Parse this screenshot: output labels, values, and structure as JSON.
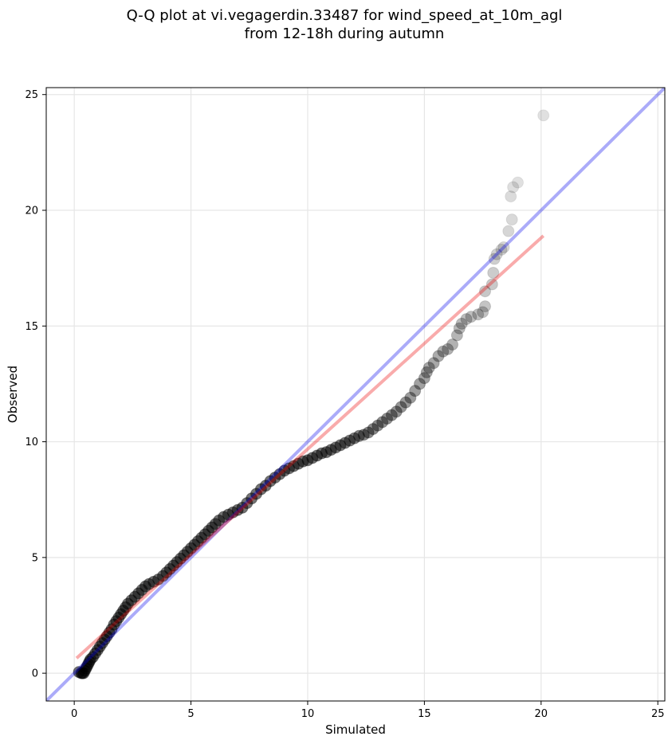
{
  "chart_data": {
    "type": "scatter",
    "title": [
      "Q-Q plot at vi.vegagerdin.33487 for wind_speed_at_10m_agl",
      "from 12-18h during autumn"
    ],
    "xlabel": "Simulated",
    "ylabel": "Observed",
    "xlim": [
      -1.2,
      25.3
    ],
    "ylim": [
      -1.2,
      25.3
    ],
    "xticks": [
      0,
      5,
      10,
      15,
      20,
      25
    ],
    "yticks": [
      0,
      5,
      10,
      15,
      20,
      25
    ],
    "grid": true,
    "point_color": "#000000",
    "reference_line": {
      "color": "#0000ee",
      "points": [
        [
          -1.2,
          -1.2
        ],
        [
          25.3,
          25.3
        ]
      ]
    },
    "fit_line": {
      "color": "#ee0000",
      "points": [
        [
          0.1,
          0.65
        ],
        [
          20.1,
          18.9
        ]
      ]
    },
    "points": [
      [
        0.2,
        0.05
      ],
      [
        0.3,
        0.0
      ],
      [
        0.35,
        0.0
      ],
      [
        0.4,
        0.0
      ],
      [
        0.45,
        0.1
      ],
      [
        0.5,
        0.2
      ],
      [
        0.55,
        0.3
      ],
      [
        0.6,
        0.4
      ],
      [
        0.65,
        0.5
      ],
      [
        0.7,
        0.6
      ],
      [
        0.8,
        0.7
      ],
      [
        0.9,
        0.85
      ],
      [
        1.0,
        1.0
      ],
      [
        1.1,
        1.15
      ],
      [
        1.2,
        1.3
      ],
      [
        1.3,
        1.45
      ],
      [
        1.4,
        1.6
      ],
      [
        1.5,
        1.75
      ],
      [
        1.6,
        1.9
      ],
      [
        1.7,
        2.1
      ],
      [
        1.8,
        2.25
      ],
      [
        1.9,
        2.4
      ],
      [
        2.0,
        2.55
      ],
      [
        2.1,
        2.7
      ],
      [
        2.2,
        2.85
      ],
      [
        2.3,
        3.0
      ],
      [
        2.45,
        3.15
      ],
      [
        2.6,
        3.3
      ],
      [
        2.75,
        3.45
      ],
      [
        2.9,
        3.6
      ],
      [
        3.05,
        3.75
      ],
      [
        3.2,
        3.85
      ],
      [
        3.4,
        3.95
      ],
      [
        3.6,
        4.05
      ],
      [
        3.8,
        4.2
      ],
      [
        3.95,
        4.35
      ],
      [
        4.1,
        4.5
      ],
      [
        4.25,
        4.65
      ],
      [
        4.4,
        4.8
      ],
      [
        4.55,
        4.95
      ],
      [
        4.7,
        5.1
      ],
      [
        4.85,
        5.25
      ],
      [
        5.0,
        5.4
      ],
      [
        5.15,
        5.55
      ],
      [
        5.3,
        5.7
      ],
      [
        5.45,
        5.85
      ],
      [
        5.6,
        6.0
      ],
      [
        5.75,
        6.15
      ],
      [
        5.9,
        6.3
      ],
      [
        6.05,
        6.45
      ],
      [
        6.2,
        6.6
      ],
      [
        6.4,
        6.75
      ],
      [
        6.6,
        6.85
      ],
      [
        6.8,
        6.95
      ],
      [
        7.0,
        7.05
      ],
      [
        7.2,
        7.15
      ],
      [
        7.4,
        7.35
      ],
      [
        7.6,
        7.55
      ],
      [
        7.8,
        7.75
      ],
      [
        8.0,
        7.95
      ],
      [
        8.2,
        8.1
      ],
      [
        8.4,
        8.3
      ],
      [
        8.6,
        8.45
      ],
      [
        8.8,
        8.6
      ],
      [
        9.0,
        8.75
      ],
      [
        9.2,
        8.85
      ],
      [
        9.4,
        8.95
      ],
      [
        9.6,
        9.05
      ],
      [
        9.8,
        9.15
      ],
      [
        10.0,
        9.2
      ],
      [
        10.2,
        9.3
      ],
      [
        10.4,
        9.4
      ],
      [
        10.6,
        9.5
      ],
      [
        10.8,
        9.55
      ],
      [
        11.0,
        9.65
      ],
      [
        11.2,
        9.75
      ],
      [
        11.4,
        9.85
      ],
      [
        11.6,
        9.95
      ],
      [
        11.8,
        10.05
      ],
      [
        12.0,
        10.15
      ],
      [
        12.2,
        10.25
      ],
      [
        12.4,
        10.3
      ],
      [
        12.6,
        10.4
      ],
      [
        12.8,
        10.55
      ],
      [
        13.0,
        10.7
      ],
      [
        13.2,
        10.85
      ],
      [
        13.4,
        11.0
      ],
      [
        13.6,
        11.15
      ],
      [
        13.8,
        11.3
      ],
      [
        14.0,
        11.5
      ],
      [
        14.2,
        11.7
      ],
      [
        14.4,
        11.9
      ],
      [
        14.6,
        12.2
      ],
      [
        14.8,
        12.5
      ],
      [
        15.0,
        12.75
      ],
      [
        15.1,
        13.0
      ],
      [
        15.2,
        13.2
      ],
      [
        15.4,
        13.4
      ],
      [
        15.6,
        13.7
      ],
      [
        15.8,
        13.9
      ],
      [
        16.0,
        14.0
      ],
      [
        16.2,
        14.2
      ],
      [
        16.4,
        14.6
      ],
      [
        16.5,
        14.9
      ],
      [
        16.6,
        15.1
      ],
      [
        16.8,
        15.3
      ],
      [
        17.0,
        15.4
      ],
      [
        17.3,
        15.5
      ],
      [
        17.5,
        15.6
      ],
      [
        17.6,
        15.85
      ],
      [
        17.6,
        16.5
      ],
      [
        17.9,
        16.8
      ],
      [
        17.95,
        17.3
      ],
      [
        18.0,
        17.9
      ],
      [
        18.1,
        18.1
      ],
      [
        18.3,
        18.3
      ],
      [
        18.4,
        18.4
      ],
      [
        18.6,
        19.1
      ],
      [
        18.75,
        19.6
      ],
      [
        18.7,
        20.6
      ],
      [
        18.8,
        21.0
      ],
      [
        19.0,
        21.2
      ],
      [
        20.1,
        24.1
      ]
    ]
  }
}
